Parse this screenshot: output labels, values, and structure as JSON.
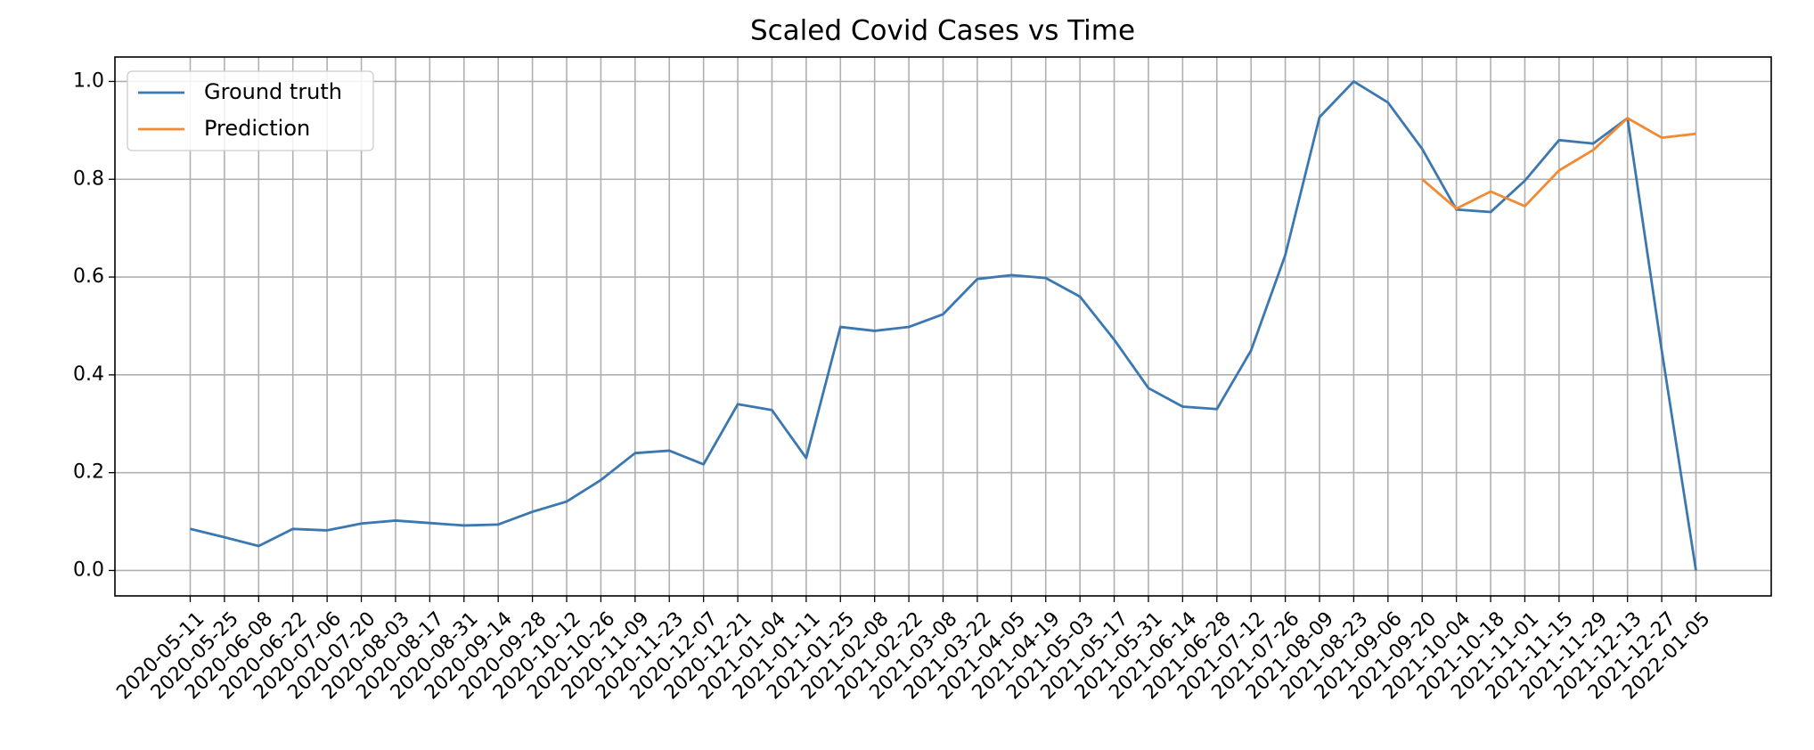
{
  "chart_data": {
    "type": "line",
    "title": "Scaled Covid Cases vs Time",
    "categories": [
      "2020-05-11",
      "2020-05-25",
      "2020-06-08",
      "2020-06-22",
      "2020-07-06",
      "2020-07-20",
      "2020-08-03",
      "2020-08-17",
      "2020-08-31",
      "2020-09-14",
      "2020-09-28",
      "2020-10-12",
      "2020-10-26",
      "2020-11-09",
      "2020-11-23",
      "2020-12-07",
      "2020-12-21",
      "2021-01-04",
      "2021-01-11",
      "2021-01-25",
      "2021-02-08",
      "2021-02-22",
      "2021-03-08",
      "2021-03-22",
      "2021-04-05",
      "2021-04-19",
      "2021-05-03",
      "2021-05-17",
      "2021-05-31",
      "2021-06-14",
      "2021-06-28",
      "2021-07-12",
      "2021-07-26",
      "2021-08-09",
      "2021-08-23",
      "2021-09-06",
      "2021-09-20",
      "2021-10-04",
      "2021-10-18",
      "2021-11-01",
      "2021-11-15",
      "2021-11-29",
      "2021-12-13",
      "2021-12-27",
      "2022-01-05"
    ],
    "series": [
      {
        "name": "Ground truth",
        "color": "#3b77b0",
        "values": [
          0.085,
          0.068,
          0.05,
          0.085,
          0.082,
          0.096,
          0.102,
          0.097,
          0.092,
          0.094,
          0.12,
          0.141,
          0.185,
          0.24,
          0.245,
          0.217,
          0.34,
          0.328,
          0.23,
          0.498,
          0.49,
          0.498,
          0.524,
          0.596,
          0.604,
          0.598,
          0.56,
          0.472,
          0.373,
          0.335,
          0.33,
          0.45,
          0.645,
          0.927,
          1.0,
          0.957,
          0.862,
          0.738,
          0.733,
          0.797,
          0.88,
          0.873,
          0.925,
          0.45,
          0.0
        ]
      },
      {
        "name": "Prediction",
        "color": "#f28a34",
        "values": [
          null,
          null,
          null,
          null,
          null,
          null,
          null,
          null,
          null,
          null,
          null,
          null,
          null,
          null,
          null,
          null,
          null,
          null,
          null,
          null,
          null,
          null,
          null,
          null,
          null,
          null,
          null,
          null,
          null,
          null,
          null,
          null,
          null,
          null,
          null,
          null,
          0.8,
          0.74,
          0.775,
          0.745,
          0.818,
          0.86,
          0.925,
          0.885,
          0.893
        ]
      }
    ],
    "ylim": [
      -0.052,
      1.05
    ],
    "yticks": [
      {
        "value": 0,
        "label": "0.0"
      },
      0.2,
      0.4,
      0.6,
      0.8,
      {
        "value": 1,
        "label": "1.0"
      }
    ],
    "grid": true,
    "legend": "upper-left"
  }
}
